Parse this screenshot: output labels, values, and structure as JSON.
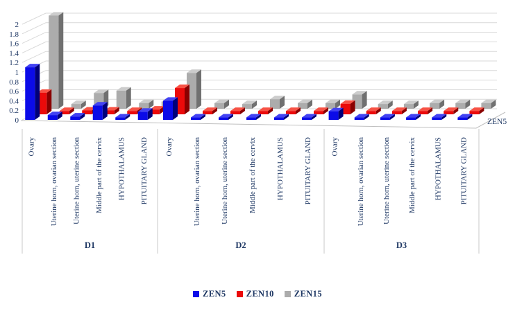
{
  "figure": {
    "background": "#FFFFFF",
    "text_color": "#1F3864",
    "gridline_color": "#D9D9D9",
    "axis_line_color": "#BFBFBF",
    "separator_color": "#C9C9C9"
  },
  "chart_data": {
    "type": "bar",
    "style": "3d-column",
    "title": "",
    "xlabel": "",
    "ylabel": "",
    "ylim": [
      0,
      2
    ],
    "ytick_labels": [
      "0",
      "0.2",
      "0.4",
      "0.6",
      "0.8",
      "1",
      "1.2",
      "1.4",
      "1.6",
      "1.8",
      "2"
    ],
    "grid": true,
    "legend_position": "bottom",
    "depth_axis_label": "ZEN5",
    "group_labels": [
      "D1",
      "D2",
      "D3"
    ],
    "category_labels": [
      "Ovary",
      "Uterine horn, ovarian section",
      "Uterine horn, uterine section",
      "Middle part of the cervix",
      "HYPOTHALAMUS",
      "PITUITARY GLAND"
    ],
    "series": [
      {
        "name": "ZEN5",
        "color": "#0B0BE8",
        "color_top": "#4242F2",
        "color_side": "#00007A",
        "values": {
          "D1": [
            1.1,
            0.1,
            0.07,
            0.3,
            0.05,
            0.17
          ],
          "D2": [
            0.4,
            0.05,
            0.05,
            0.05,
            0.05,
            0.05
          ],
          "D3": [
            0.18,
            0.05,
            0.05,
            0.05,
            0.05,
            0.05
          ]
        }
      },
      {
        "name": "ZEN10",
        "color": "#EB0A0A",
        "color_top": "#F75245",
        "color_side": "#8A0000",
        "values": {
          "D1": [
            0.45,
            0.07,
            0.08,
            0.08,
            0.07,
            0.1
          ],
          "D2": [
            0.55,
            0.07,
            0.07,
            0.07,
            0.07,
            0.07
          ],
          "D3": [
            0.22,
            0.07,
            0.07,
            0.07,
            0.07,
            0.07
          ]
        }
      },
      {
        "name": "ZEN15",
        "color": "#ACACAC",
        "color_top": "#CCCCCC",
        "color_side": "#707070",
        "values": {
          "D1": [
            1.95,
            0.1,
            0.33,
            0.38,
            0.12,
            0.15
          ],
          "D2": [
            0.75,
            0.12,
            0.1,
            0.2,
            0.12,
            0.12
          ],
          "D3": [
            0.3,
            0.1,
            0.1,
            0.12,
            0.12,
            0.12
          ]
        }
      }
    ]
  }
}
